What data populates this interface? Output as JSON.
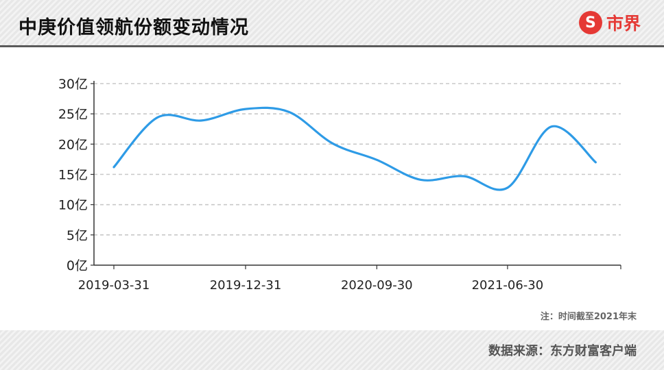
{
  "header": {
    "title": "中庚价值领航份额变动情况",
    "logo_text": "市界",
    "logo_mark": "S"
  },
  "note": "注：时间截至2021年末",
  "footer": {
    "source": "数据来源：东方财富客户端"
  },
  "colors": {
    "line": "#2e9be6",
    "grid": "#c8c8c8",
    "axis": "#333333",
    "logo": "#e53935"
  },
  "chart_data": {
    "type": "line",
    "title": "中庚价值领航份额变动情况",
    "x_tick_labels": [
      "2019-03-31",
      "2019-12-31",
      "2020-09-30",
      "2021-06-30"
    ],
    "y_tick_labels": [
      "0亿",
      "5亿",
      "10亿",
      "15亿",
      "20亿",
      "25亿",
      "30亿"
    ],
    "ylim": [
      0,
      30
    ],
    "grid": true,
    "series": [
      {
        "x": [
          "2019-03-31",
          "2019-06-30",
          "2019-09-30",
          "2019-12-31",
          "2020-03-31",
          "2020-06-30",
          "2020-09-30",
          "2020-12-31",
          "2021-03-31",
          "2021-06-30",
          "2021-09-30",
          "2021-12-31"
        ],
        "values": [
          16.2,
          24.4,
          23.9,
          25.8,
          25.3,
          20.1,
          17.4,
          14.1,
          14.7,
          12.8,
          22.9,
          17.0
        ]
      }
    ]
  }
}
